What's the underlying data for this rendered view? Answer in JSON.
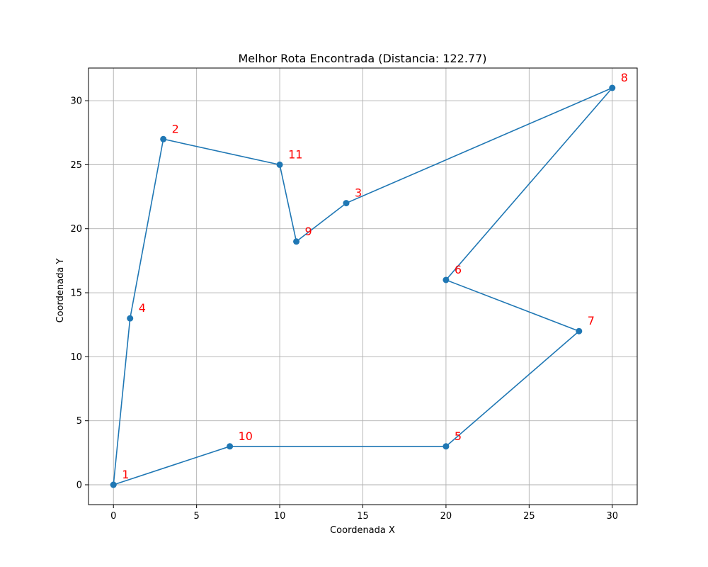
{
  "chart_data": {
    "type": "line",
    "title": "Melhor Rota Encontrada (Distancia: 122.77)",
    "xlabel": "Coordenada X",
    "ylabel": "Coordenada Y",
    "xlim": [
      -1.5,
      31.5
    ],
    "ylim": [
      -1.55,
      32.55
    ],
    "xticks": [
      0,
      5,
      10,
      15,
      20,
      25,
      30
    ],
    "yticks": [
      0,
      5,
      10,
      15,
      20,
      25,
      30
    ],
    "grid": true,
    "series": [
      {
        "route": [
          {
            "label": "1",
            "x": 0,
            "y": 0
          },
          {
            "label": "4",
            "x": 1,
            "y": 13
          },
          {
            "label": "2",
            "x": 3,
            "y": 27
          },
          {
            "label": "11",
            "x": 10,
            "y": 25
          },
          {
            "label": "9",
            "x": 11,
            "y": 19
          },
          {
            "label": "3",
            "x": 14,
            "y": 22
          },
          {
            "label": "8",
            "x": 30,
            "y": 31
          },
          {
            "label": "6",
            "x": 20,
            "y": 16
          },
          {
            "label": "7",
            "x": 28,
            "y": 12
          },
          {
            "label": "5",
            "x": 20,
            "y": 3
          },
          {
            "label": "10",
            "x": 7,
            "y": 3
          },
          {
            "label": "1",
            "x": 0,
            "y": 0
          }
        ]
      }
    ],
    "colors": {
      "line": "#1f77b4",
      "marker": "#1f77b4",
      "label": "#ff0000",
      "grid": "#b0b0b0",
      "axis": "#000000"
    }
  }
}
